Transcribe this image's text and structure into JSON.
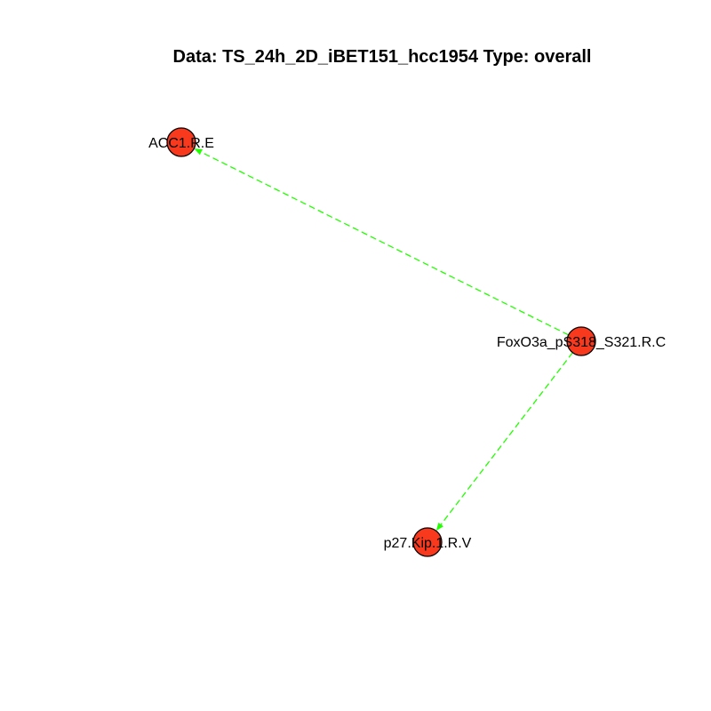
{
  "title": "Data: TS_24h_2D_iBET151_hcc1954 Type: overall",
  "colors": {
    "node_fill": "#f8391e",
    "node_stroke": "#000000",
    "edge": "#22ff00",
    "background": "#ffffff"
  },
  "nodes": [
    {
      "id": "acc1",
      "label": "ACC1.R.E"
    },
    {
      "id": "foxo3a",
      "label": "FoxO3a_pS318_S321.R.C"
    },
    {
      "id": "p27",
      "label": "p27.Kip.1.R.V"
    }
  ],
  "edges": [
    {
      "from": "foxo3a",
      "to": "acc1",
      "style": "dashed",
      "arrow": "to"
    },
    {
      "from": "foxo3a",
      "to": "p27",
      "style": "dashed",
      "arrow": "to"
    }
  ]
}
